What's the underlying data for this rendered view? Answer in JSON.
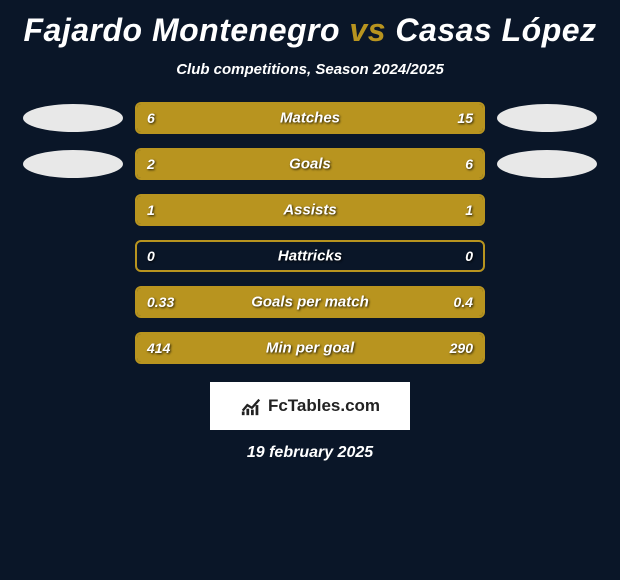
{
  "title": {
    "player1": "Fajardo Montenegro",
    "vs": "vs",
    "player2": "Casas López",
    "color_p1": "#ffffff",
    "color_vs": "#b8941f",
    "color_p2": "#ffffff",
    "fontsize": 32
  },
  "subtitle": "Club competitions, Season 2024/2025",
  "badges": {
    "left_color": "#e8e8e8",
    "right_color": "#e8e8e8"
  },
  "bar_style": {
    "border_color": "#b8941f",
    "fill_color": "#b8941f",
    "height": 32,
    "border_radius": 6,
    "label_fontsize": 15,
    "value_fontsize": 14
  },
  "stats": [
    {
      "label": "Matches",
      "left_val": "6",
      "right_val": "15",
      "left_num": 6,
      "right_num": 15,
      "show_badges": true
    },
    {
      "label": "Goals",
      "left_val": "2",
      "right_val": "6",
      "left_num": 2,
      "right_num": 6,
      "show_badges": true
    },
    {
      "label": "Assists",
      "left_val": "1",
      "right_val": "1",
      "left_num": 1,
      "right_num": 1,
      "show_badges": false
    },
    {
      "label": "Hattricks",
      "left_val": "0",
      "right_val": "0",
      "left_num": 0,
      "right_num": 0,
      "show_badges": false
    },
    {
      "label": "Goals per match",
      "left_val": "0.33",
      "right_val": "0.4",
      "left_num": 0.33,
      "right_num": 0.4,
      "show_badges": false
    },
    {
      "label": "Min per goal",
      "left_val": "414",
      "right_val": "290",
      "left_num": 414,
      "right_num": 290,
      "show_badges": false
    }
  ],
  "logo": {
    "text": "FcTables.com",
    "bg": "#ffffff",
    "text_color": "#222222"
  },
  "date": "19 february 2025",
  "background_color": "#0a1628"
}
